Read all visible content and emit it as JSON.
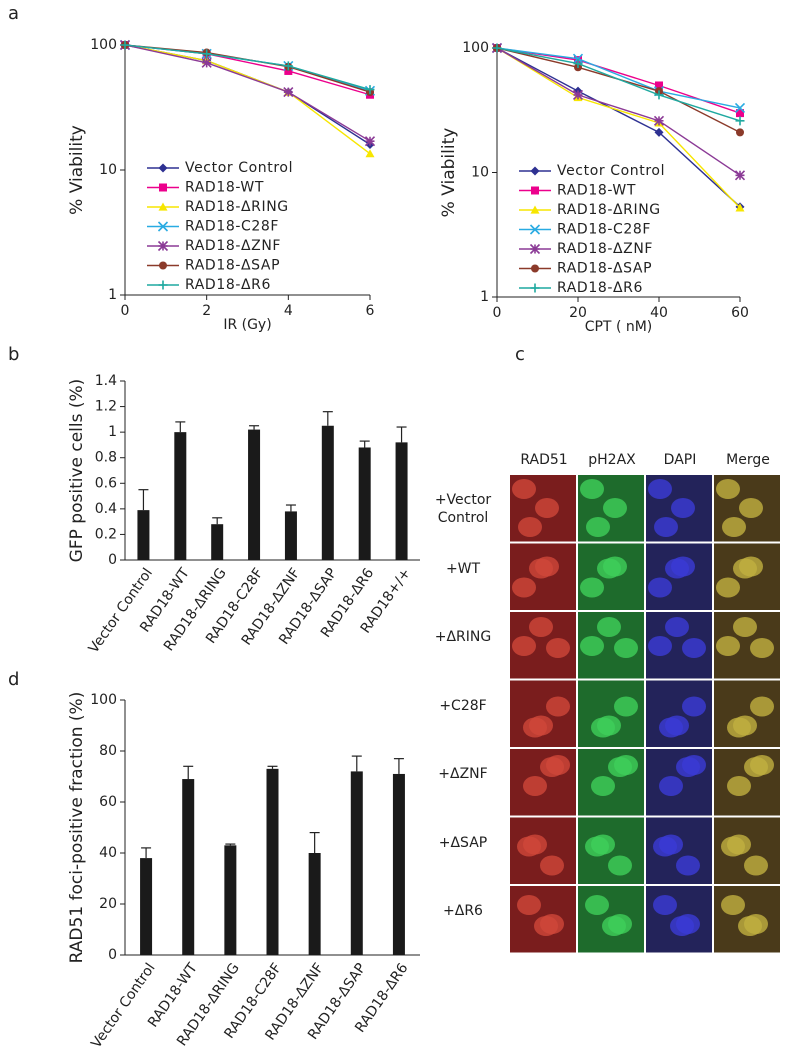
{
  "panel_labels": [
    "a",
    "b",
    "c",
    "d"
  ],
  "chart_data": [
    {
      "type": "line",
      "log_y": true,
      "xlabel": "IR (Gy)",
      "ylabel": "% Viability",
      "x": [
        0,
        2,
        4,
        6
      ],
      "xlim": [
        0,
        6
      ],
      "xticks": [
        0,
        2,
        4,
        6
      ],
      "ylim": [
        1,
        100
      ],
      "yticks": [
        1,
        10,
        100
      ],
      "legend": "center-left",
      "series": [
        {
          "name": "Vector Control",
          "color": "#2e3192",
          "marker": "diamond",
          "values": [
            100,
            75,
            42,
            16
          ]
        },
        {
          "name": "RAD18-WT",
          "color": "#ec008c",
          "marker": "square",
          "values": [
            100,
            85,
            62,
            40
          ]
        },
        {
          "name": "RAD18-ΔRING",
          "color": "#f7e600",
          "marker": "triangle",
          "values": [
            100,
            75,
            42,
            13.5
          ]
        },
        {
          "name": "RAD18-C28F",
          "color": "#29abe2",
          "marker": "x",
          "values": [
            100,
            85,
            68,
            43
          ]
        },
        {
          "name": "RAD18-ΔZNF",
          "color": "#8b3a96",
          "marker": "asterisk",
          "values": [
            100,
            72,
            42,
            17
          ]
        },
        {
          "name": "RAD18-ΔSAP",
          "color": "#8b3a2a",
          "marker": "circle",
          "values": [
            100,
            87,
            67,
            42
          ]
        },
        {
          "name": "RAD18-ΔR6",
          "color": "#1fa9a0",
          "marker": "plus",
          "values": [
            100,
            85,
            68,
            44
          ]
        }
      ]
    },
    {
      "type": "line",
      "log_y": true,
      "xlabel": "CPT ( nM)",
      "ylabel": "% Viability",
      "x": [
        0,
        20,
        40,
        60
      ],
      "xlim": [
        0,
        60
      ],
      "xticks": [
        0,
        20,
        40,
        60
      ],
      "ylim": [
        1,
        100
      ],
      "yticks": [
        1,
        10,
        100
      ],
      "legend": "center-left",
      "series": [
        {
          "name": "Vector Control",
          "color": "#2e3192",
          "marker": "diamond",
          "values": [
            100,
            45,
            21,
            5.3
          ]
        },
        {
          "name": "RAD18-WT",
          "color": "#ec008c",
          "marker": "square",
          "values": [
            100,
            80,
            50,
            30
          ]
        },
        {
          "name": "RAD18-ΔRING",
          "color": "#f7e600",
          "marker": "triangle",
          "values": [
            100,
            40,
            25,
            5.2
          ]
        },
        {
          "name": "RAD18-C28F",
          "color": "#29abe2",
          "marker": "x",
          "values": [
            100,
            82,
            45,
            33
          ]
        },
        {
          "name": "RAD18-ΔZNF",
          "color": "#8b3a96",
          "marker": "asterisk",
          "values": [
            100,
            42,
            26,
            9.5
          ]
        },
        {
          "name": "RAD18-ΔSAP",
          "color": "#8b3a2a",
          "marker": "circle",
          "values": [
            100,
            70,
            45,
            21
          ]
        },
        {
          "name": "RAD18-ΔR6",
          "color": "#1fa9a0",
          "marker": "plus",
          "values": [
            100,
            75,
            42,
            26
          ]
        }
      ]
    },
    {
      "type": "bar",
      "ylabel": "GFP positive cells (%)",
      "color": "#1a1a1a",
      "categories": [
        "Vector Control",
        "RAD18-WT",
        "RAD18-ΔRING",
        "RAD18-C28F",
        "RAD18-ΔZNF",
        "RAD18-ΔSAP",
        "RAD18-ΔR6",
        "RAD18+/+"
      ],
      "values": [
        0.39,
        1.0,
        0.28,
        1.02,
        0.38,
        1.05,
        0.88,
        0.92
      ],
      "errors": [
        0.16,
        0.08,
        0.05,
        0.03,
        0.05,
        0.11,
        0.05,
        0.12
      ],
      "ylim": [
        0,
        1.4
      ],
      "yticks": [
        0,
        0.2,
        0.4,
        0.6,
        0.8,
        1,
        1.2,
        1.4
      ]
    },
    {
      "type": "bar",
      "ylabel": "RAD51 foci-positive fraction (%)",
      "color": "#1a1a1a",
      "categories": [
        "Vector Control",
        "RAD18-WT",
        "RAD18-ΔRING",
        "RAD18-C28F",
        "RAD18-ΔZNF",
        "RAD18-ΔSAP",
        "RAD18-ΔR6"
      ],
      "values": [
        38,
        69,
        43,
        73,
        40,
        72,
        71
      ],
      "errors": [
        4,
        5,
        0.5,
        1,
        8,
        6,
        6
      ],
      "ylim": [
        0,
        100
      ],
      "yticks": [
        0,
        20,
        40,
        60,
        80,
        100
      ]
    }
  ],
  "image_grid": {
    "columns": [
      "RAD51",
      "pH2AX",
      "DAPI",
      "Merge"
    ],
    "rows": [
      "+Vector Control",
      "+WT",
      "+ΔRING",
      "+C28F",
      "+ΔZNF",
      "+ΔSAP",
      "+ΔR6"
    ]
  }
}
